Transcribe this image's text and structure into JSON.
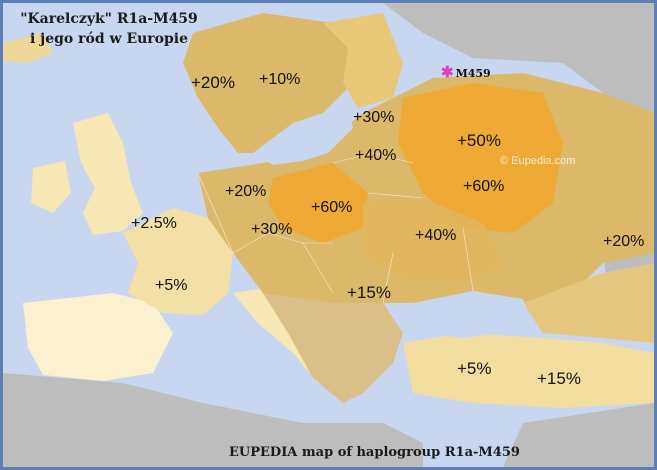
{
  "title": {
    "line1": "\"Karelczyk\" R1a-M459",
    "line2": "i jego ród w Europie"
  },
  "caption": "EUPEDIA map of haplogroup R1a-M459",
  "watermark": "© Eupedia.com",
  "marker": {
    "icon": "asterisk-icon",
    "label": "M459",
    "color": "#e040c0"
  },
  "labels": {
    "norway": "+20%",
    "sweden_finland": "+10%",
    "baltics": "+30%",
    "belarus": "+40%",
    "west_russia": "+50%",
    "central_russia": "+60%",
    "volga": "+20%",
    "germany": "+20%",
    "poland": "+60%",
    "britain": "+2.5%",
    "czech": "+30%",
    "ukraine": "+40%",
    "france": "+5%",
    "balkans": "+15%",
    "anatolia": "+5%",
    "caucasus": "+15%"
  },
  "colors": {
    "sea": "#c8d6f0",
    "land_none": "#bdbdbd",
    "tint_low": "#f7e8b8",
    "tint_mid": "#e8c878",
    "tint_high": "#f0a830",
    "frame": "#5d7fb8"
  }
}
